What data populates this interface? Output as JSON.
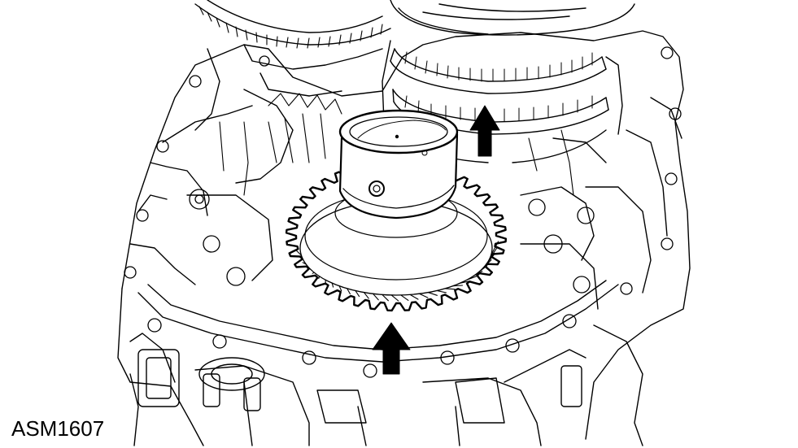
{
  "figure": {
    "code": "ASM1607",
    "colors": {
      "line": "#000000",
      "background": "#ffffff"
    },
    "arrows": [
      {
        "name": "upper-right-arrow",
        "direction": "up"
      },
      {
        "name": "lower-center-arrow",
        "direction": "up"
      }
    ]
  }
}
